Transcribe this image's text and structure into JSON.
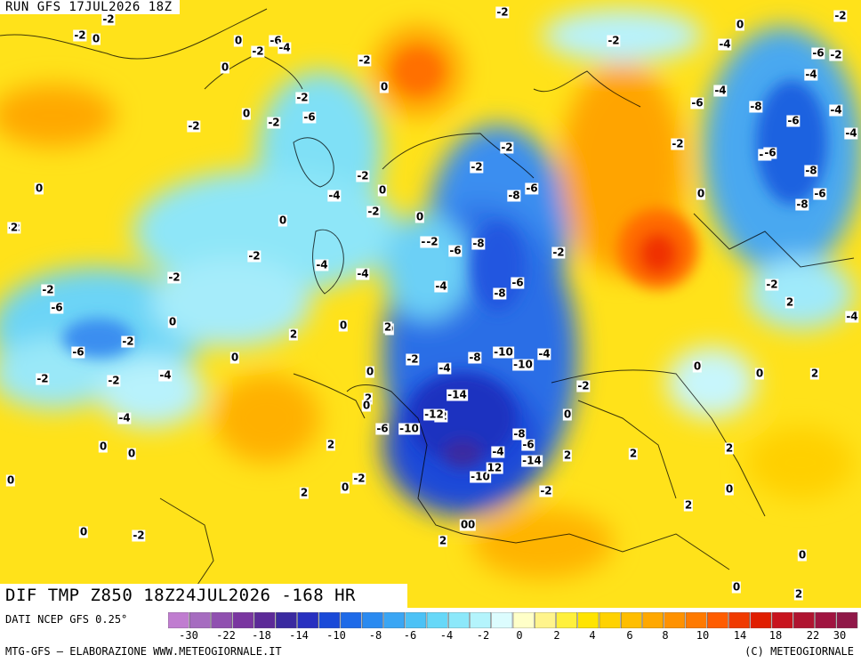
{
  "header": {
    "run_label": "RUN GFS 17JUL2026 18Z"
  },
  "map": {
    "product_label": "DIF TMP Z850 18Z24JUL2026 -168 HR",
    "values": [
      "-4",
      "0",
      "-2",
      "-2",
      "-6",
      "-2",
      "-4",
      "0",
      "0",
      "-2",
      "-2",
      "-6",
      "-2",
      "0",
      "-2",
      "0",
      "-4",
      "0",
      "-2",
      "-4",
      "-2",
      "-6",
      "-2",
      "-8",
      "-4",
      "-6",
      "-6",
      "-8",
      "-4",
      "-4",
      "-6",
      "-8",
      "-8",
      "-6",
      "-2",
      "0",
      "-2",
      "-2",
      "-4",
      "-8",
      "-6",
      "-2",
      "0",
      "0",
      "0",
      "-2",
      "-4",
      "-2",
      "-2",
      "-6",
      "-8",
      "-2",
      "-2",
      "0",
      "-2",
      "-4",
      "-4",
      "-2",
      "-8",
      "-6",
      "-4",
      "-6",
      "-2",
      "-4",
      "0",
      "0",
      "0",
      "2",
      "-2",
      "0",
      "-6",
      "-10",
      "-4",
      "-2",
      "-4",
      "-2",
      "-10",
      "-8",
      "-4",
      "-2",
      "-2",
      "-14",
      "0",
      "-2",
      "-12",
      "2",
      "-6",
      "-10",
      "-8",
      "-6",
      "2",
      "0",
      "-4",
      "-14",
      "-4",
      "2",
      "0",
      "-2",
      "-10",
      "12",
      "0",
      "2",
      "0",
      "2",
      "0",
      "2",
      "0",
      "2",
      "0",
      "-2",
      "2",
      "0",
      "0",
      "0",
      "2",
      "0",
      "0",
      "2",
      "-2",
      "0",
      "2",
      "0",
      "2",
      "0",
      "2",
      "-2",
      "0",
      "-2"
    ]
  },
  "legend": {
    "source_label": "DATI NCEP GFS 0.25°",
    "tick_labels": [
      "-30",
      "-22",
      "-18",
      "-14",
      "-10",
      "-8",
      "-6",
      "-4",
      "-2",
      "0",
      "2",
      "4",
      "6",
      "8",
      "10",
      "14",
      "18",
      "22",
      "30"
    ],
    "colors": [
      "#c07dd0",
      "#a66cc0",
      "#9050b0",
      "#7a36a0",
      "#5c2a98",
      "#3a2aa0",
      "#2830c0",
      "#1a4ad8",
      "#1e6ae8",
      "#2a8af0",
      "#3aa6f4",
      "#4cc2f6",
      "#66d8f8",
      "#8ce8fa",
      "#b4f4fc",
      "#dcfcfe",
      "#ffffc8",
      "#fff48c",
      "#fff03c",
      "#ffe400",
      "#ffd200",
      "#ffbe00",
      "#ffa800",
      "#ff9200",
      "#ff7a00",
      "#ff5c00",
      "#f03a00",
      "#e01e00",
      "#c8141e",
      "#b01430",
      "#a01440",
      "#901848"
    ]
  },
  "footer": {
    "credit_left": "MTG-GFS — ELABORAZIONE WWW.METEOGIORNALE.IT",
    "credit_right": "(C) METEOGIORNALE"
  }
}
